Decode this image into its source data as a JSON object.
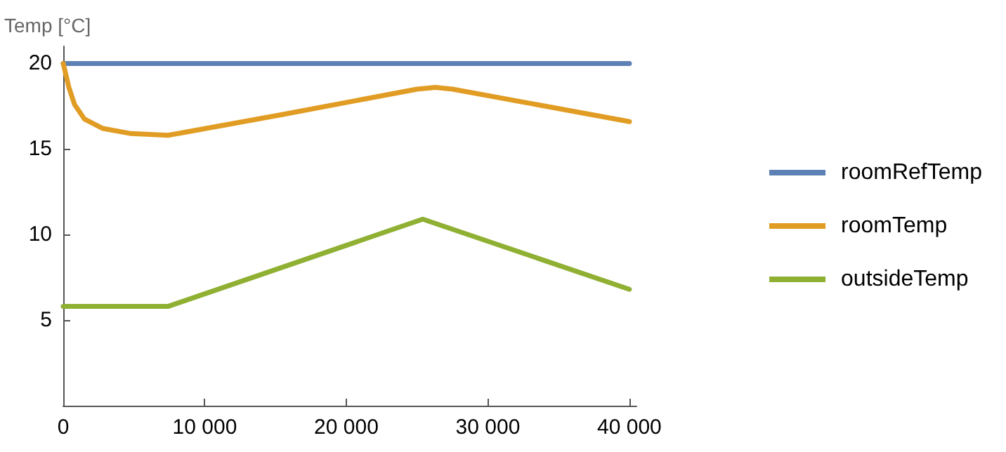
{
  "chart_data": {
    "type": "line",
    "ylabel": "Temp [°C]",
    "xlim": [
      0,
      40500
    ],
    "ylim": [
      0,
      21
    ],
    "xticks": [
      0,
      {
        "value": 10000,
        "label": "10 000"
      },
      {
        "value": 20000,
        "label": "20 000"
      },
      {
        "value": 30000,
        "label": "30 000"
      },
      {
        "value": 40000,
        "label": "40 000"
      }
    ],
    "yticks": [
      5,
      10,
      15,
      20
    ],
    "grid": false,
    "legend": "right",
    "marker": "none",
    "line_style": "solid",
    "series": [
      {
        "name": "roomRefTemp",
        "color": "#5e81b5",
        "x": [
          0,
          40000
        ],
        "values": [
          20,
          20
        ]
      },
      {
        "name": "roomTemp",
        "color": "#e19c24",
        "x": [
          0,
          400,
          800,
          1500,
          2800,
          4800,
          7400,
          15400,
          25000,
          26300,
          27500,
          40000
        ],
        "values": [
          20,
          18.6,
          17.6,
          16.75,
          16.2,
          15.9,
          15.8,
          17.0,
          18.5,
          18.6,
          18.5,
          16.6
        ]
      },
      {
        "name": "outsideTemp",
        "color": "#8fb032",
        "x": [
          0,
          7400,
          25400,
          40000
        ],
        "values": [
          5.8,
          5.8,
          10.9,
          6.8
        ]
      }
    ]
  }
}
